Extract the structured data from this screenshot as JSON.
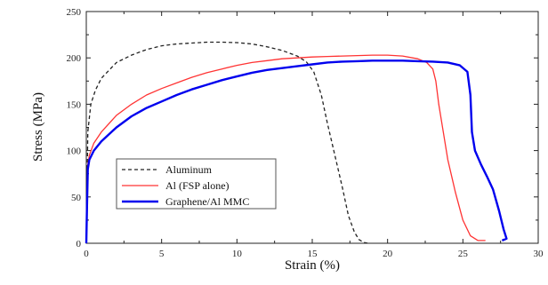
{
  "chart_data": {
    "type": "line",
    "title": "",
    "xlabel": "Strain (%)",
    "ylabel": "Stress (MPa)",
    "xlim": [
      0,
      30
    ],
    "ylim": [
      0,
      250
    ],
    "xticks": [
      0,
      5,
      10,
      15,
      20,
      25,
      30
    ],
    "yticks": [
      0,
      50,
      100,
      150,
      200,
      250
    ],
    "grid": false,
    "legend_position": "bottom-left",
    "series": [
      {
        "name": "Aluminum",
        "color": "#222222",
        "style": "dashed",
        "x": [
          0,
          0.1,
          0.3,
          0.6,
          1,
          2,
          3,
          4,
          5,
          6,
          7,
          8,
          9,
          10,
          11,
          12,
          13,
          14,
          14.6,
          15.1,
          15.6,
          16,
          16.5,
          17,
          17.4,
          17.8,
          18.1,
          18.4,
          18.7
        ],
        "y": [
          0,
          120,
          150,
          165,
          178,
          195,
          203,
          209,
          213,
          215,
          216,
          217,
          217,
          216.5,
          215,
          212,
          208,
          202,
          196,
          185,
          160,
          130,
          95,
          60,
          30,
          12,
          4,
          1,
          0
        ]
      },
      {
        "name": "Al (FSP alone)",
        "color": "#ff3333",
        "style": "solid",
        "x": [
          0,
          0.05,
          0.1,
          0.2,
          0.5,
          1,
          2,
          3,
          4,
          5,
          6,
          7,
          8,
          9,
          10,
          11,
          12,
          13,
          14,
          15,
          16,
          17,
          18,
          19,
          20,
          21,
          22,
          22.6,
          23,
          23.2,
          23.4,
          23.7,
          24,
          24.5,
          25,
          25.5,
          26,
          26.5
        ],
        "y": [
          0,
          50,
          85,
          95,
          108,
          120,
          138,
          150,
          160,
          167,
          173,
          179,
          184,
          188,
          192,
          195,
          197,
          199,
          200,
          201,
          201.5,
          202,
          202.5,
          203,
          203,
          202,
          199,
          195,
          188,
          175,
          150,
          120,
          90,
          55,
          25,
          8,
          3,
          3
        ]
      },
      {
        "name": "Graphene/Al MMC",
        "color": "#0000ee",
        "style": "solid",
        "x": [
          0,
          0.05,
          0.1,
          0.2,
          0.5,
          1,
          2,
          3,
          4,
          5,
          6,
          7,
          8,
          9,
          10,
          11,
          12,
          13,
          14,
          15,
          16,
          17,
          18,
          19,
          20,
          21,
          22,
          23,
          24,
          24.8,
          25.3,
          25.5,
          25.6,
          25.8,
          26.2,
          26.6,
          27,
          27.4,
          27.7,
          27.9,
          27.6
        ],
        "y": [
          0,
          40,
          80,
          90,
          100,
          110,
          125,
          137,
          146,
          153,
          160,
          166,
          171,
          176,
          180,
          184,
          187,
          189,
          191,
          193,
          195,
          196,
          196.5,
          197,
          197,
          197,
          196.5,
          196,
          195,
          192,
          185,
          160,
          120,
          100,
          85,
          72,
          58,
          35,
          15,
          5,
          3
        ]
      }
    ]
  }
}
